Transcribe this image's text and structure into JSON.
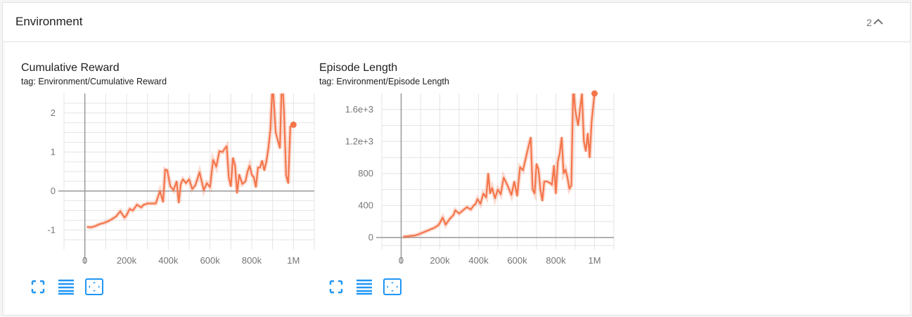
{
  "panel": {
    "title": "Environment",
    "count": "2",
    "collapse_icon": "chevron-up-icon"
  },
  "accent_color": "#f4754a",
  "icons": {
    "expand": "fullscreen-icon",
    "lines": "toggle-log-scale-icon",
    "fit": "fit-domain-icon"
  },
  "cards": [
    {
      "title": "Cumulative Reward",
      "tag": "tag: Environment/Cumulative Reward",
      "y_ticks": [
        "2",
        "1",
        "0",
        "-1"
      ],
      "x_ticks": [
        "0",
        "200k",
        "400k",
        "600k",
        "800k",
        "1M"
      ]
    },
    {
      "title": "Episode Length",
      "tag": "tag: Environment/Episode Length",
      "y_ticks": [
        "1.6e+3",
        "1.2e+3",
        "800",
        "400",
        "0"
      ],
      "x_ticks": [
        "0",
        "200k",
        "400k",
        "600k",
        "800k",
        "1M"
      ]
    }
  ],
  "chart_data": [
    {
      "type": "line",
      "title": "Cumulative Reward",
      "xlabel": "",
      "ylabel": "",
      "xlim": [
        -100000,
        1100000
      ],
      "ylim": [
        -1.5,
        2.5
      ],
      "grid": true,
      "series": [
        {
          "color": "#f4754a",
          "x": [
            10000,
            30000,
            50000,
            70000,
            90000,
            110000,
            130000,
            150000,
            170000,
            190000,
            200000,
            215000,
            230000,
            250000,
            270000,
            280000,
            300000,
            320000,
            340000,
            360000,
            375000,
            385000,
            395000,
            410000,
            425000,
            440000,
            450000,
            460000,
            470000,
            485000,
            500000,
            515000,
            530000,
            550000,
            570000,
            585000,
            600000,
            615000,
            630000,
            645000,
            660000,
            670000,
            680000,
            690000,
            700000,
            710000,
            720000,
            730000,
            740000,
            755000,
            770000,
            780000,
            790000,
            800000,
            810000,
            820000,
            830000,
            840000,
            850000,
            860000,
            870000,
            880000,
            890000,
            900000,
            915000,
            935000,
            945000,
            955000,
            965000,
            975000,
            985000,
            1000000
          ],
          "y": [
            -0.92,
            -0.93,
            -0.9,
            -0.85,
            -0.82,
            -0.78,
            -0.72,
            -0.65,
            -0.52,
            -0.68,
            -0.62,
            -0.46,
            -0.5,
            -0.35,
            -0.42,
            -0.36,
            -0.32,
            -0.32,
            -0.32,
            0.0,
            -0.28,
            0.55,
            0.53,
            0.12,
            0.02,
            0.25,
            -0.3,
            0.18,
            0.3,
            0.2,
            0.3,
            0.05,
            0.15,
            0.48,
            0.02,
            0.2,
            0.1,
            0.8,
            0.62,
            1.02,
            1.0,
            1.08,
            1.15,
            0.35,
            0.12,
            0.85,
            0.65,
            -0.05,
            0.42,
            0.18,
            0.25,
            0.5,
            0.65,
            0.42,
            0.35,
            0.1,
            0.6,
            0.6,
            0.78,
            0.53,
            0.75,
            1.1,
            1.6,
            2.8,
            1.5,
            1.1,
            3.0,
            2.0,
            0.4,
            0.2,
            1.65,
            1.7
          ]
        }
      ]
    },
    {
      "type": "line",
      "title": "Episode Length",
      "xlabel": "",
      "ylabel": "",
      "xlim": [
        -100000,
        1100000
      ],
      "ylim": [
        -150,
        1800
      ],
      "grid": true,
      "series": [
        {
          "color": "#f4754a",
          "x": [
            10000,
            30000,
            50000,
            70000,
            90000,
            110000,
            130000,
            150000,
            170000,
            190000,
            200000,
            215000,
            230000,
            250000,
            270000,
            280000,
            300000,
            320000,
            340000,
            360000,
            375000,
            385000,
            395000,
            410000,
            425000,
            440000,
            450000,
            460000,
            470000,
            485000,
            500000,
            515000,
            530000,
            550000,
            570000,
            585000,
            600000,
            615000,
            630000,
            645000,
            660000,
            670000,
            680000,
            690000,
            700000,
            710000,
            720000,
            730000,
            740000,
            755000,
            770000,
            780000,
            790000,
            800000,
            810000,
            820000,
            830000,
            840000,
            850000,
            860000,
            870000,
            880000,
            890000,
            900000,
            915000,
            935000,
            945000,
            955000,
            965000,
            975000,
            985000,
            1000000
          ],
          "y": [
            10,
            15,
            20,
            25,
            40,
            60,
            80,
            100,
            120,
            150,
            180,
            250,
            160,
            230,
            280,
            340,
            300,
            340,
            380,
            350,
            400,
            420,
            480,
            420,
            550,
            500,
            800,
            550,
            620,
            490,
            600,
            540,
            750,
            650,
            530,
            700,
            520,
            880,
            840,
            1000,
            1150,
            1250,
            600,
            550,
            920,
            850,
            600,
            460,
            700,
            700,
            680,
            660,
            900,
            550,
            950,
            1050,
            1250,
            800,
            850,
            750,
            610,
            650,
            1900,
            1600,
            1400,
            1800,
            1200,
            1080,
            1300,
            1000,
            1450,
            1800
          ]
        }
      ]
    }
  ]
}
